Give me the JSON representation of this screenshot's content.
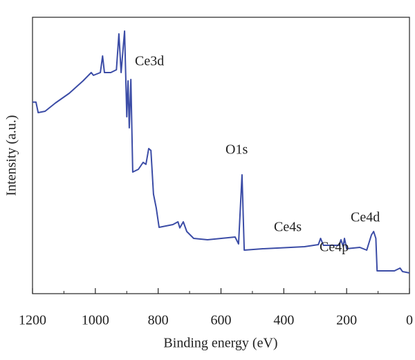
{
  "chart_data": {
    "type": "line",
    "xlabel": "Binding energy (eV)",
    "ylabel": "Intensity (a.u.)",
    "annotations": [
      "Ce3d",
      "O1s",
      "Ce4s",
      "Ce4p",
      "Ce4d"
    ],
    "xlim": [
      1200,
      0
    ],
    "ylim": [
      0,
      100
    ],
    "xticks": [
      1200,
      1000,
      800,
      600,
      400,
      200,
      0
    ],
    "series": [
      {
        "color": "#3b4ca6",
        "x": [
          1200,
          1189,
          1182,
          1160,
          1127,
          1083,
          1039,
          1013,
          1006,
          984,
          977,
          971,
          951,
          933,
          925,
          918,
          907,
          900,
          896,
          892,
          887,
          881,
          863,
          848,
          839,
          830,
          823,
          815,
          806,
          797,
          753,
          737,
          731,
          720,
          709,
          687,
          643,
          555,
          544,
          533,
          526,
          467,
          334,
          290,
          283,
          274,
          224,
          218,
          211,
          207,
          200,
          158,
          136,
          121,
          114,
          107,
          103,
          48,
          30,
          22,
          0
        ],
        "values": [
          69.3,
          69.3,
          65.5,
          66,
          69,
          72.5,
          77,
          80,
          79,
          80,
          86,
          80,
          80,
          81,
          94,
          80,
          95,
          64,
          77,
          60,
          77.5,
          44,
          45,
          47.5,
          46.8,
          52.5,
          51.8,
          36,
          31,
          24,
          25,
          26,
          23.8,
          26,
          22.5,
          20,
          19.5,
          20.5,
          18,
          43,
          15.75,
          16.25,
          17,
          17.75,
          20,
          17.5,
          17.5,
          19.5,
          17,
          20,
          16.25,
          16.75,
          15.75,
          21.25,
          22.5,
          20,
          8.25,
          8.25,
          9.25,
          8,
          7.5
        ]
      }
    ]
  }
}
